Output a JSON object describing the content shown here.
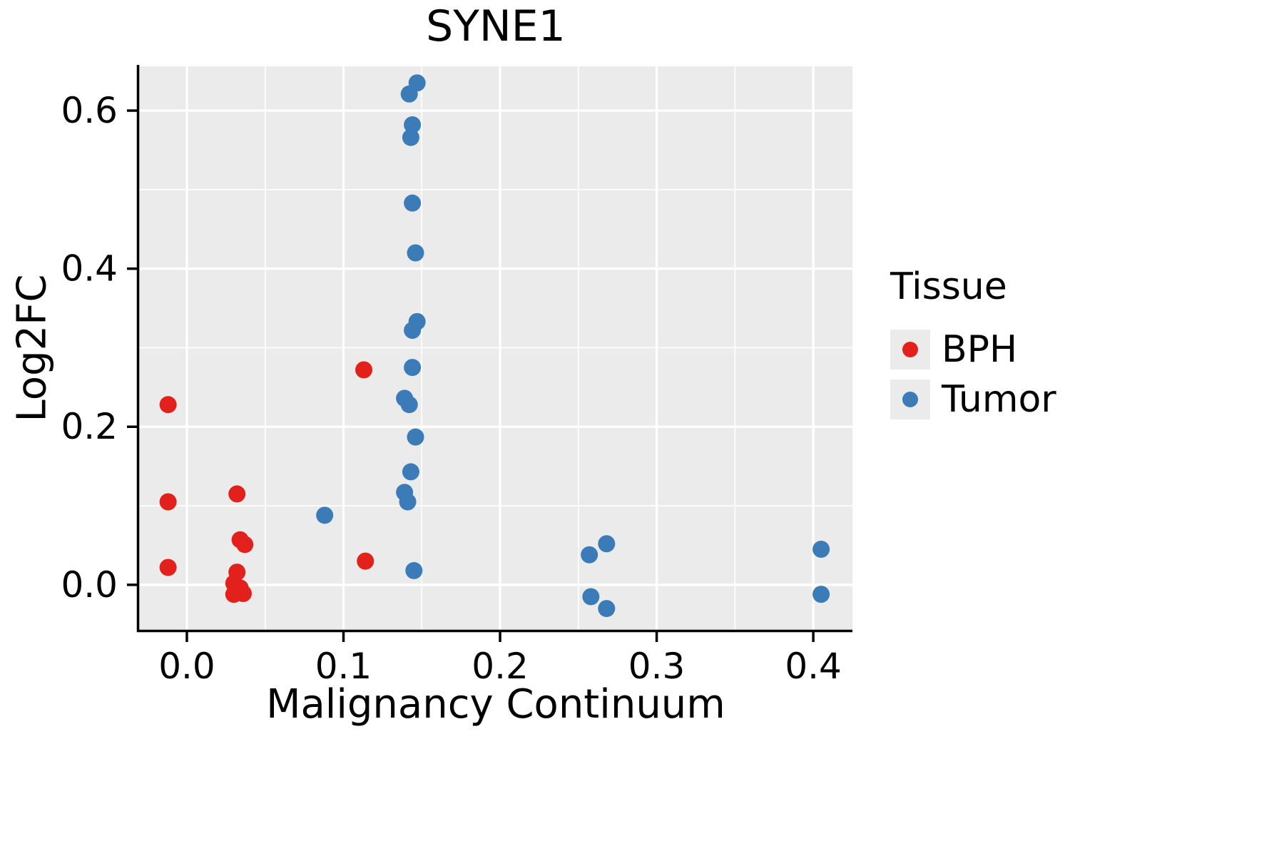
{
  "chart_data": {
    "type": "scatter",
    "title": "SYNE1",
    "xlabel": "Malignancy Continuum",
    "ylabel": "Log2FC",
    "xlim": [
      -0.0305,
      0.425
    ],
    "ylim": [
      -0.057,
      0.656
    ],
    "x_major_ticks": [
      0.0,
      0.1,
      0.2,
      0.3,
      0.4
    ],
    "x_tick_labels": [
      "0.0",
      "0.1",
      "0.2",
      "0.3",
      "0.4"
    ],
    "x_minor_ticks": [
      0.05,
      0.15,
      0.25,
      0.35
    ],
    "y_major_ticks": [
      0.0,
      0.2,
      0.4,
      0.6
    ],
    "y_tick_labels": [
      "0.0",
      "0.2",
      "0.4",
      "0.6"
    ],
    "y_minor_ticks": [
      0.1,
      0.3,
      0.5
    ],
    "grid": true,
    "panel_background": "#ebebeb",
    "grid_color": "#ffffff",
    "axis_color": "#000000",
    "point_radius": 12,
    "legend": {
      "title": "Tissue",
      "position": "right",
      "entries": [
        {
          "label": "BPH",
          "color": "#e2211c"
        },
        {
          "label": "Tumor",
          "color": "#3b7cb8"
        }
      ]
    },
    "series": [
      {
        "name": "BPH",
        "color": "#e2211c",
        "points": [
          [
            -0.012,
            0.228
          ],
          [
            -0.012,
            0.105
          ],
          [
            -0.012,
            0.022
          ],
          [
            0.032,
            0.115
          ],
          [
            0.034,
            0.057
          ],
          [
            0.037,
            0.051
          ],
          [
            0.032,
            0.016
          ],
          [
            0.03,
            0.002
          ],
          [
            0.034,
            -0.004
          ],
          [
            0.03,
            -0.012
          ],
          [
            0.036,
            -0.011
          ],
          [
            0.113,
            0.272
          ],
          [
            0.114,
            0.03
          ]
        ]
      },
      {
        "name": "Tumor",
        "color": "#3b7cb8",
        "points": [
          [
            0.088,
            0.088
          ],
          [
            0.147,
            0.635
          ],
          [
            0.142,
            0.621
          ],
          [
            0.144,
            0.582
          ],
          [
            0.143,
            0.566
          ],
          [
            0.144,
            0.483
          ],
          [
            0.146,
            0.42
          ],
          [
            0.147,
            0.333
          ],
          [
            0.144,
            0.322
          ],
          [
            0.144,
            0.275
          ],
          [
            0.139,
            0.236
          ],
          [
            0.142,
            0.228
          ],
          [
            0.146,
            0.187
          ],
          [
            0.143,
            0.143
          ],
          [
            0.139,
            0.117
          ],
          [
            0.141,
            0.105
          ],
          [
            0.145,
            0.018
          ],
          [
            0.257,
            0.038
          ],
          [
            0.268,
            0.052
          ],
          [
            0.258,
            -0.015
          ],
          [
            0.268,
            -0.03
          ],
          [
            0.405,
            0.045
          ],
          [
            0.405,
            -0.012
          ]
        ]
      }
    ]
  }
}
